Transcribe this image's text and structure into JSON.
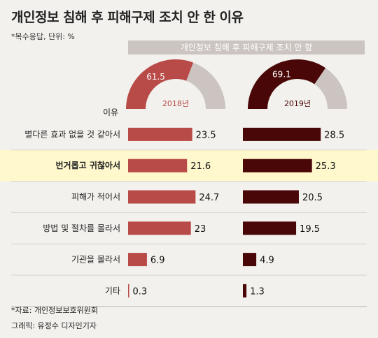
{
  "title": "개인정보 침해 후 피해구제 조치 안 한 이유",
  "note": "*복수응답, 단위: %",
  "header": "개인정보 침해 후 피해구제 조치 안 함",
  "column_label": "이유",
  "source": "*자료: 개인정보보호위원회",
  "credit": "그래픽: 유정수 디자인기자",
  "colors": {
    "y2018": "#b84a48",
    "y2019": "#4a0707",
    "gauge_rest": "#cbc4c0",
    "highlight": "#fff8cc"
  },
  "chart_data": [
    {
      "type": "pie",
      "subtype": "half-donut",
      "year": "2018년",
      "values": [
        61.5,
        38.5
      ],
      "labels": [
        "61.5",
        ""
      ]
    },
    {
      "type": "pie",
      "subtype": "half-donut",
      "year": "2019년",
      "values": [
        69.1,
        30.9
      ],
      "labels": [
        "69.1",
        ""
      ]
    },
    {
      "type": "bar",
      "orientation": "horizontal",
      "categories": [
        "별다른 효과 없을 것 같아서",
        "번거롭고 귀찮아서",
        "피해가 적어서",
        "방법 및 절차를 몰라서",
        "기관을 몰라서",
        "기타"
      ],
      "highlight_index": 1,
      "series": [
        {
          "name": "2018년",
          "values": [
            23.5,
            21.6,
            24.7,
            23,
            6.9,
            0.3
          ]
        },
        {
          "name": "2019년",
          "values": [
            28.5,
            25.3,
            20.5,
            19.5,
            4.9,
            1.3
          ]
        }
      ]
    }
  ]
}
